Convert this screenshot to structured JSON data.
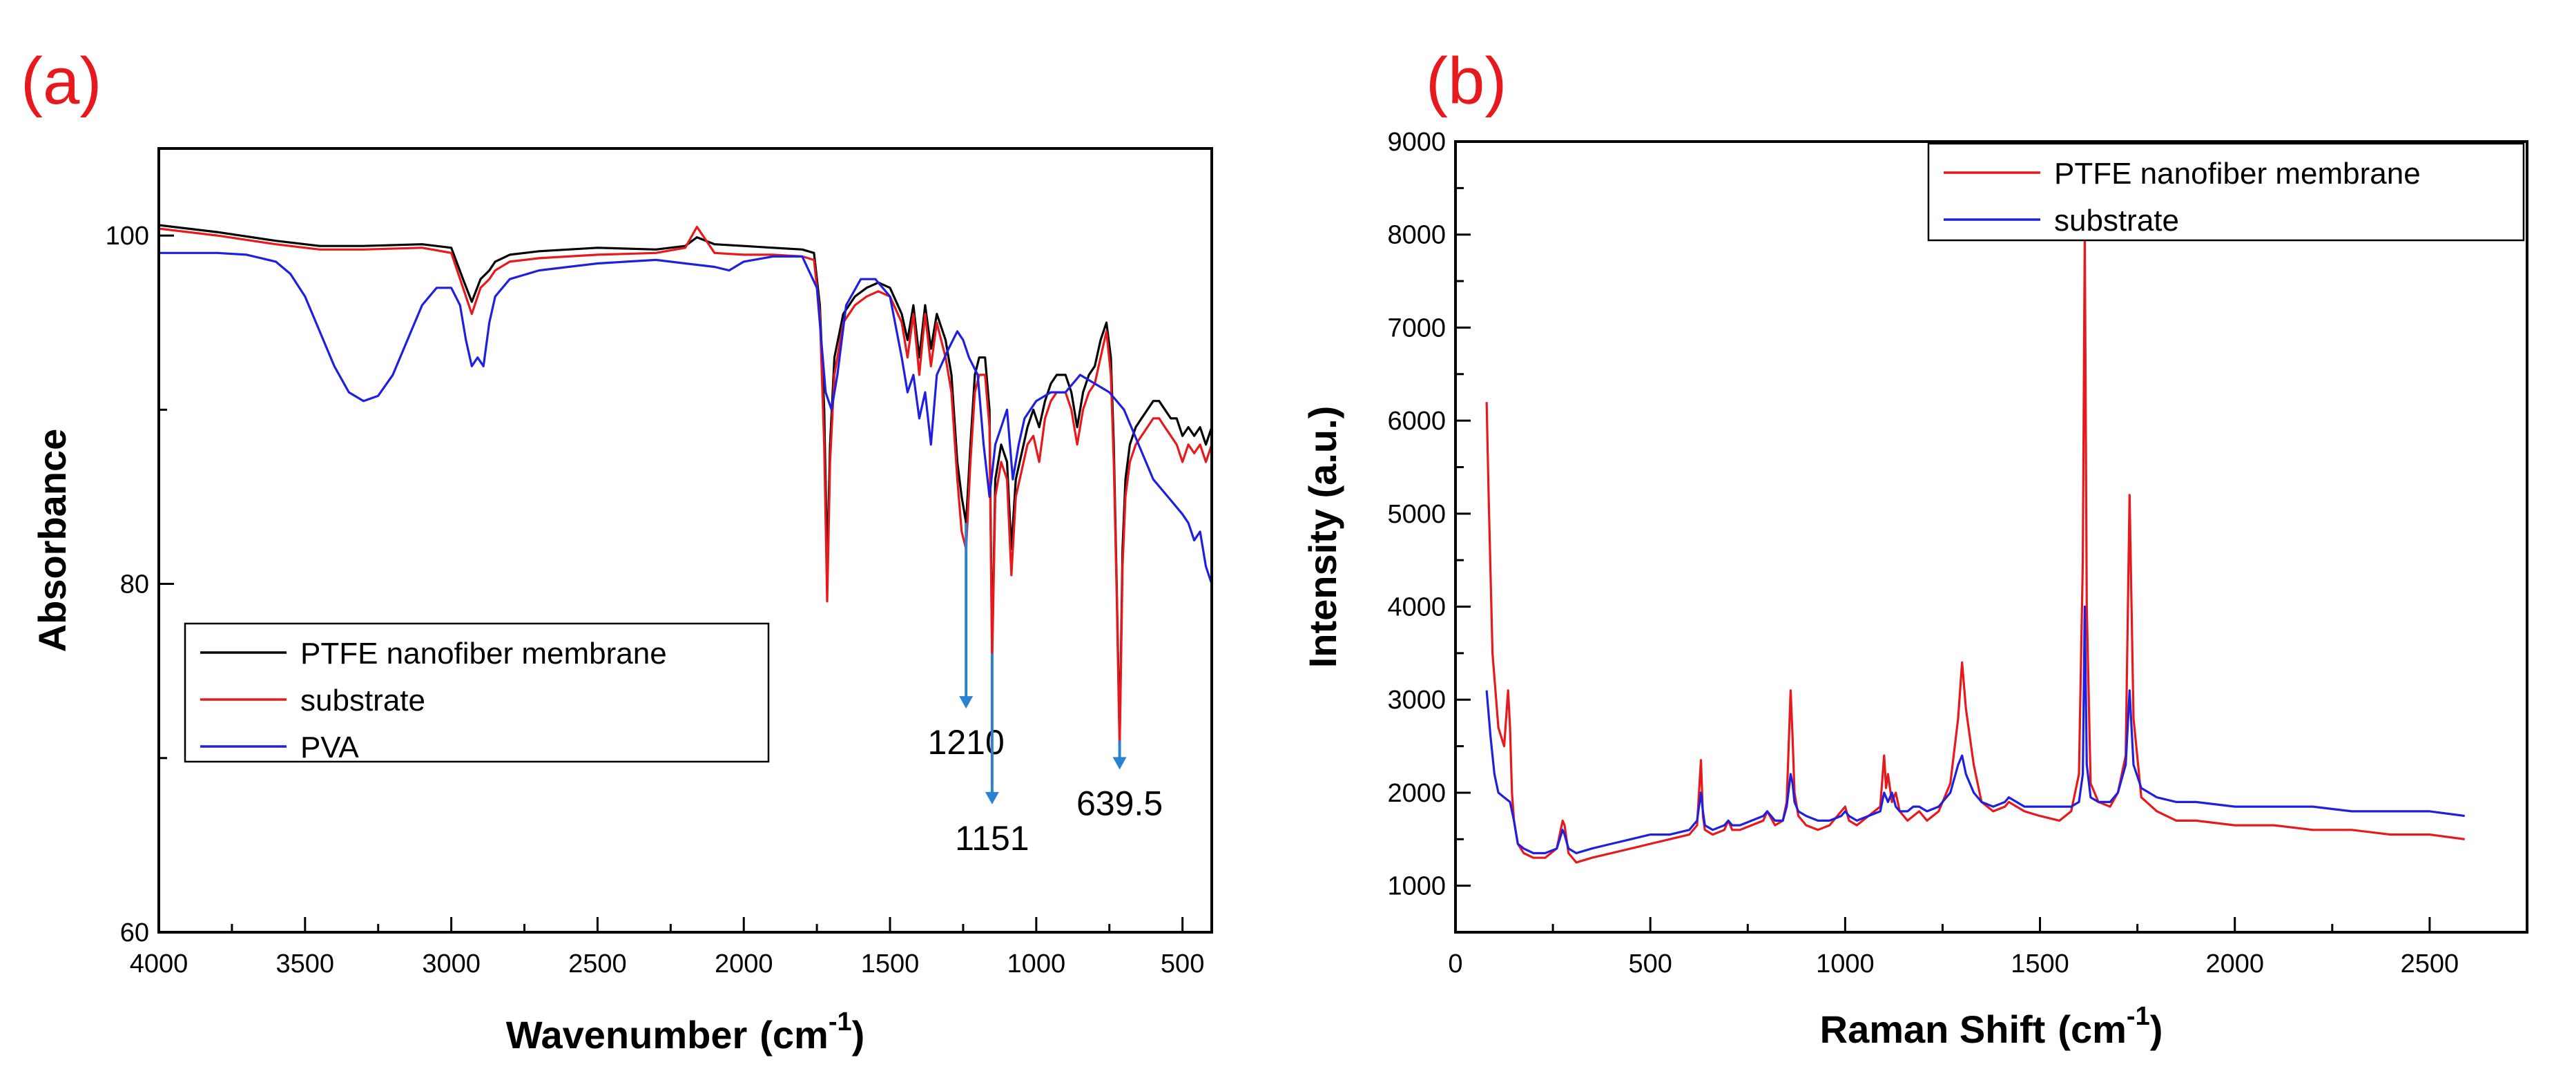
{
  "chart_data": [
    {
      "panel_label": "(a)",
      "type": "line",
      "title": "",
      "xlabel": "Wavenumber",
      "xlabel_unit": "(cm",
      "xlabel_unit_exp": "-1",
      "xlabel_unit_close": ")",
      "ylabel": "Absorbance",
      "xlim": [
        4000,
        400
      ],
      "ylim": [
        60,
        105
      ],
      "x_reversed": true,
      "grid": false,
      "legend_position": "lower-left",
      "x_ticks": [
        4000,
        3500,
        3000,
        2500,
        2000,
        1500,
        1000,
        500
      ],
      "y_ticks": [
        60,
        80,
        100
      ],
      "series": [
        {
          "name": "PTFE nanofiber membrane",
          "color": "#000000",
          "x": [
            4000,
            3800,
            3600,
            3450,
            3300,
            3100,
            3000,
            2960,
            2930,
            2900,
            2870,
            2850,
            2800,
            2700,
            2500,
            2300,
            2200,
            2160,
            2100,
            2000,
            1900,
            1800,
            1760,
            1740,
            1725,
            1715,
            1705,
            1690,
            1660,
            1620,
            1580,
            1540,
            1500,
            1460,
            1440,
            1420,
            1400,
            1380,
            1360,
            1340,
            1310,
            1290,
            1270,
            1255,
            1240,
            1225,
            1210,
            1195,
            1175,
            1160,
            1151,
            1140,
            1120,
            1100,
            1085,
            1070,
            1050,
            1030,
            1010,
            990,
            970,
            950,
            930,
            900,
            880,
            860,
            840,
            820,
            800,
            780,
            760,
            745,
            735,
            725,
            715,
            705,
            695,
            680,
            660,
            640,
            620,
            600,
            580,
            560,
            540,
            520,
            500,
            480,
            460,
            440,
            420,
            400
          ],
          "y": [
            100.6,
            100.2,
            99.7,
            99.4,
            99.4,
            99.5,
            99.3,
            97.5,
            96.2,
            97.5,
            98.0,
            98.5,
            98.9,
            99.1,
            99.3,
            99.2,
            99.4,
            99.9,
            99.5,
            99.4,
            99.3,
            99.2,
            99.0,
            96.0,
            90.0,
            81.0,
            88.0,
            93.0,
            95.5,
            96.5,
            97.0,
            97.3,
            97.0,
            95.5,
            94.0,
            96.0,
            93.0,
            96.0,
            93.5,
            95.5,
            94.0,
            92.0,
            87.0,
            85.0,
            83.5,
            88.0,
            92.0,
            93.0,
            93.0,
            90.0,
            76.0,
            86.0,
            88.0,
            87.0,
            82.0,
            86.0,
            87.5,
            89.0,
            90.0,
            89.0,
            90.5,
            91.5,
            92.0,
            92.0,
            91.0,
            89.0,
            91.0,
            92.0,
            92.5,
            94.0,
            95.0,
            93.0,
            88.0,
            80.0,
            71.0,
            82.0,
            86.0,
            88.0,
            89.0,
            89.5,
            90.0,
            90.5,
            90.5,
            90.0,
            89.5,
            89.5,
            88.5,
            89.0,
            88.5,
            89.0,
            88.0,
            89.0
          ]
        },
        {
          "name": "substrate",
          "color": "#e8191c",
          "x": [
            4000,
            3800,
            3600,
            3450,
            3300,
            3100,
            3000,
            2960,
            2930,
            2900,
            2870,
            2850,
            2800,
            2700,
            2500,
            2300,
            2200,
            2160,
            2100,
            2000,
            1900,
            1800,
            1760,
            1740,
            1725,
            1715,
            1705,
            1690,
            1660,
            1620,
            1580,
            1540,
            1500,
            1460,
            1440,
            1420,
            1400,
            1380,
            1360,
            1340,
            1310,
            1290,
            1270,
            1255,
            1240,
            1225,
            1210,
            1195,
            1175,
            1160,
            1151,
            1140,
            1120,
            1100,
            1085,
            1070,
            1050,
            1030,
            1010,
            990,
            970,
            950,
            930,
            900,
            880,
            860,
            840,
            820,
            800,
            780,
            760,
            745,
            735,
            725,
            715,
            705,
            695,
            680,
            660,
            640,
            620,
            600,
            580,
            560,
            540,
            520,
            500,
            480,
            460,
            440,
            420,
            400
          ],
          "y": [
            100.4,
            100.0,
            99.5,
            99.2,
            99.2,
            99.3,
            99.0,
            97.0,
            95.5,
            97.0,
            97.5,
            98.0,
            98.5,
            98.7,
            98.9,
            99.0,
            99.3,
            100.5,
            99.0,
            98.9,
            98.9,
            98.8,
            98.6,
            95.5,
            88.0,
            79.0,
            87.0,
            92.0,
            95.0,
            96.0,
            96.5,
            96.8,
            96.5,
            95.0,
            93.0,
            95.5,
            92.0,
            95.5,
            92.5,
            95.0,
            93.0,
            91.0,
            86.0,
            83.0,
            82.0,
            87.0,
            91.0,
            92.0,
            92.0,
            89.0,
            75.5,
            85.0,
            87.0,
            86.0,
            80.5,
            85.0,
            86.5,
            88.0,
            88.5,
            87.0,
            89.5,
            90.5,
            91.0,
            91.0,
            90.0,
            88.0,
            90.0,
            91.0,
            91.5,
            93.0,
            94.5,
            92.0,
            87.0,
            79.5,
            70.5,
            81.0,
            85.0,
            87.0,
            88.0,
            88.5,
            89.0,
            89.5,
            89.5,
            89.0,
            88.5,
            88.0,
            87.0,
            88.0,
            87.5,
            88.0,
            87.0,
            88.0
          ]
        },
        {
          "name": "PVA",
          "color": "#1f1fe0",
          "x": [
            4000,
            3800,
            3700,
            3600,
            3550,
            3500,
            3450,
            3400,
            3350,
            3300,
            3250,
            3200,
            3150,
            3100,
            3050,
            3000,
            2970,
            2950,
            2930,
            2910,
            2890,
            2870,
            2850,
            2800,
            2700,
            2600,
            2500,
            2400,
            2300,
            2200,
            2100,
            2050,
            2000,
            1900,
            1800,
            1750,
            1720,
            1700,
            1680,
            1650,
            1600,
            1550,
            1500,
            1460,
            1440,
            1420,
            1400,
            1380,
            1360,
            1340,
            1300,
            1270,
            1250,
            1230,
            1200,
            1180,
            1160,
            1140,
            1120,
            1100,
            1080,
            1060,
            1040,
            1000,
            950,
            900,
            850,
            800,
            750,
            700,
            650,
            600,
            550,
            500,
            480,
            460,
            440,
            420,
            400
          ],
          "y": [
            99.0,
            99.0,
            98.9,
            98.5,
            97.8,
            96.5,
            94.5,
            92.5,
            91.0,
            90.5,
            90.8,
            92.0,
            94.0,
            96.0,
            97.0,
            97.0,
            96.0,
            94.0,
            92.5,
            93.0,
            92.5,
            95.0,
            96.5,
            97.5,
            98.0,
            98.2,
            98.4,
            98.5,
            98.6,
            98.4,
            98.2,
            98.0,
            98.5,
            98.8,
            98.8,
            97.0,
            91.0,
            90.0,
            92.0,
            96.0,
            97.5,
            97.5,
            96.5,
            93.0,
            91.0,
            92.0,
            89.5,
            91.0,
            88.0,
            92.0,
            93.5,
            94.5,
            94.0,
            93.0,
            92.0,
            88.0,
            85.0,
            88.0,
            89.0,
            90.0,
            86.0,
            88.0,
            89.5,
            90.5,
            91.0,
            91.0,
            92.0,
            91.5,
            91.0,
            90.0,
            88.0,
            86.0,
            85.0,
            84.0,
            83.5,
            82.5,
            83.0,
            81.0,
            80.0
          ]
        }
      ],
      "annotations": [
        {
          "label": "1210",
          "x": 1240,
          "y_from": 83.5,
          "y_to": 73.0
        },
        {
          "label": "1151",
          "x": 1151,
          "y_from": 76.0,
          "y_to": 67.5
        },
        {
          "label": "639.5",
          "x": 715,
          "y_from": 71.0,
          "y_to": 69.5
        }
      ]
    },
    {
      "panel_label": "(b)",
      "type": "line",
      "title": "",
      "xlabel": "Raman Shift",
      "xlabel_unit": "(cm",
      "xlabel_unit_exp": "-1",
      "xlabel_unit_close": ")",
      "ylabel": "Intensity (a.u.)",
      "xlim": [
        0,
        2750
      ],
      "ylim": [
        500,
        9000
      ],
      "x_reversed": false,
      "grid": false,
      "legend_position": "top-right",
      "x_ticks": [
        0,
        500,
        1000,
        1500,
        2000,
        2500
      ],
      "y_ticks": [
        1000,
        2000,
        3000,
        4000,
        5000,
        6000,
        7000,
        8000,
        9000
      ],
      "series": [
        {
          "name": "PTFE nanofiber membrane",
          "color": "#e8191c",
          "x": [
            80,
            85,
            95,
            110,
            125,
            135,
            140,
            145,
            150,
            160,
            175,
            200,
            230,
            260,
            275,
            280,
            290,
            310,
            350,
            400,
            450,
            500,
            550,
            600,
            620,
            630,
            635,
            640,
            660,
            690,
            700,
            710,
            730,
            760,
            790,
            800,
            820,
            840,
            850,
            860,
            865,
            870,
            880,
            900,
            930,
            960,
            990,
            1000,
            1010,
            1030,
            1060,
            1090,
            1100,
            1105,
            1110,
            1120,
            1130,
            1140,
            1160,
            1175,
            1190,
            1210,
            1240,
            1270,
            1290,
            1300,
            1310,
            1330,
            1350,
            1380,
            1410,
            1420,
            1440,
            1460,
            1500,
            1550,
            1580,
            1600,
            1610,
            1615,
            1620,
            1630,
            1650,
            1680,
            1700,
            1720,
            1730,
            1740,
            1760,
            1800,
            1850,
            1900,
            2000,
            2100,
            2200,
            2300,
            2400,
            2500,
            2590
          ],
          "y": [
            6200,
            5200,
            3500,
            2700,
            2500,
            3100,
            2700,
            2000,
            1700,
            1450,
            1350,
            1300,
            1300,
            1400,
            1700,
            1650,
            1350,
            1250,
            1300,
            1350,
            1400,
            1450,
            1500,
            1550,
            1650,
            2350,
            1750,
            1600,
            1550,
            1600,
            1700,
            1600,
            1600,
            1650,
            1700,
            1800,
            1650,
            1700,
            1900,
            3100,
            2600,
            2000,
            1750,
            1650,
            1600,
            1650,
            1800,
            1850,
            1700,
            1650,
            1750,
            1850,
            2400,
            2050,
            2200,
            1900,
            2000,
            1800,
            1700,
            1750,
            1800,
            1700,
            1800,
            2100,
            2800,
            3400,
            2900,
            2300,
            1900,
            1800,
            1850,
            1900,
            1850,
            1800,
            1750,
            1700,
            1800,
            2200,
            4500,
            8000,
            4000,
            2100,
            1900,
            1850,
            2000,
            2400,
            5200,
            2800,
            1950,
            1800,
            1700,
            1700,
            1650,
            1650,
            1600,
            1600,
            1550,
            1550,
            1500
          ]
        },
        {
          "name": "substrate",
          "color": "#1f1fe0",
          "x": [
            80,
            90,
            100,
            110,
            125,
            140,
            150,
            160,
            175,
            200,
            230,
            260,
            275,
            280,
            290,
            310,
            350,
            400,
            450,
            500,
            550,
            600,
            620,
            630,
            635,
            640,
            660,
            690,
            700,
            710,
            730,
            760,
            790,
            800,
            820,
            840,
            850,
            860,
            865,
            870,
            880,
            900,
            930,
            960,
            990,
            1000,
            1010,
            1030,
            1060,
            1090,
            1100,
            1110,
            1120,
            1130,
            1140,
            1160,
            1175,
            1190,
            1210,
            1240,
            1270,
            1290,
            1300,
            1310,
            1330,
            1350,
            1380,
            1410,
            1420,
            1440,
            1460,
            1500,
            1550,
            1580,
            1600,
            1610,
            1615,
            1620,
            1630,
            1650,
            1680,
            1700,
            1720,
            1730,
            1740,
            1760,
            1800,
            1850,
            1900,
            2000,
            2100,
            2200,
            2300,
            2400,
            2500,
            2590
          ],
          "y": [
            3100,
            2600,
            2200,
            2000,
            1950,
            1900,
            1700,
            1450,
            1400,
            1350,
            1350,
            1400,
            1600,
            1550,
            1400,
            1350,
            1400,
            1450,
            1500,
            1550,
            1550,
            1600,
            1700,
            2000,
            1800,
            1650,
            1600,
            1650,
            1700,
            1650,
            1650,
            1700,
            1750,
            1800,
            1700,
            1700,
            1850,
            2200,
            2100,
            1900,
            1800,
            1750,
            1700,
            1700,
            1750,
            1800,
            1750,
            1700,
            1750,
            1800,
            2000,
            1900,
            2000,
            1850,
            1800,
            1800,
            1850,
            1850,
            1800,
            1850,
            2000,
            2300,
            2400,
            2200,
            2000,
            1900,
            1850,
            1900,
            1950,
            1900,
            1850,
            1850,
            1850,
            1850,
            1900,
            2200,
            4000,
            2300,
            1950,
            1900,
            1900,
            2000,
            2300,
            3100,
            2300,
            2050,
            1950,
            1900,
            1900,
            1850,
            1850,
            1850,
            1800,
            1800,
            1800,
            1750
          ]
        }
      ],
      "annotations": []
    }
  ]
}
